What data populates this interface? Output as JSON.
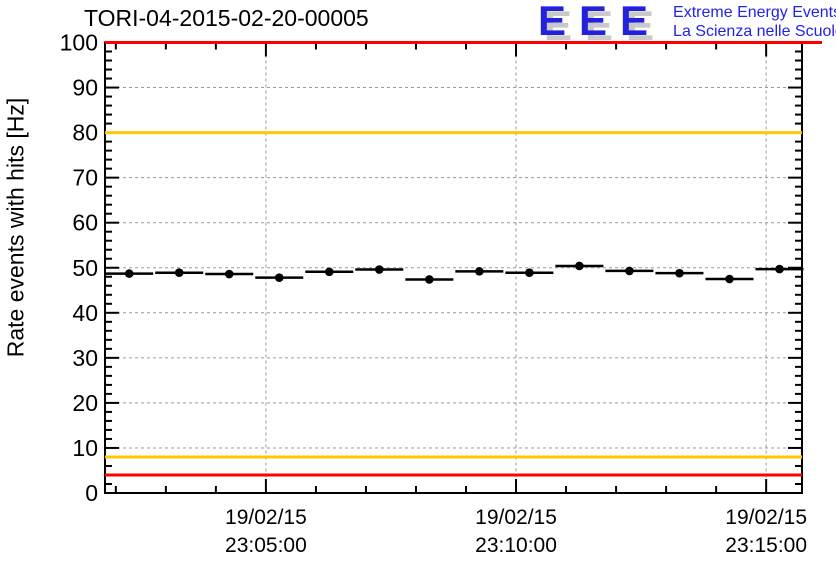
{
  "header": {
    "title": "TORI-04-2015-02-20-00005"
  },
  "logo": {
    "letters": "EEE",
    "line1": "Extreme Energy Events",
    "line2": "La Scienza nelle Scuole",
    "blue": "#2222dd",
    "shadow_gray": "#c9c9c9"
  },
  "chart_data": {
    "type": "line",
    "title": "TORI-04-2015-02-20-00005",
    "xlabel": "",
    "ylabel": "Rate events with hits [Hz]",
    "ylim": [
      0,
      100
    ],
    "y_major_step": 10,
    "y_minor_step": 2,
    "y_tick_labels": [
      "0",
      "10",
      "20",
      "30",
      "40",
      "50",
      "60",
      "70",
      "80",
      "90",
      "100"
    ],
    "grid": "dotted gray at major ticks, both axes",
    "legend_position": "none",
    "x_range_seconds": [
      -193,
      643
    ],
    "x_minor_step_seconds": 60,
    "x_major_ticks": [
      {
        "t": 0,
        "label_date": "19/02/15",
        "label_time": "23:05:00"
      },
      {
        "t": 300,
        "label_date": "19/02/15",
        "label_time": "23:10:00"
      },
      {
        "t": 600,
        "label_date": "19/02/15",
        "label_time": "23:15:00"
      }
    ],
    "thresholds": [
      {
        "value": 100,
        "color": "#ff0000",
        "extend_right": true
      },
      {
        "value": 80,
        "color": "#ffc800",
        "extend_right": false
      },
      {
        "value": 8,
        "color": "#ffc800",
        "extend_right": false
      },
      {
        "value": 4,
        "color": "#ff0000",
        "extend_right": false
      }
    ],
    "series": [
      {
        "name": "rate-events-with-hits",
        "color": "#000000",
        "marker": "filled-circle",
        "bin_halfwidth_seconds": 30,
        "points": [
          {
            "t": -164,
            "v": 48.7
          },
          {
            "t": -104,
            "v": 48.9
          },
          {
            "t": -44,
            "v": 48.6
          },
          {
            "t": 16,
            "v": 47.8
          },
          {
            "t": 76,
            "v": 49.1
          },
          {
            "t": 136,
            "v": 49.6
          },
          {
            "t": 196,
            "v": 47.4
          },
          {
            "t": 256,
            "v": 49.2
          },
          {
            "t": 316,
            "v": 48.9
          },
          {
            "t": 376,
            "v": 50.4
          },
          {
            "t": 436,
            "v": 49.3
          },
          {
            "t": 496,
            "v": 48.8
          },
          {
            "t": 556,
            "v": 47.5
          },
          {
            "t": 616,
            "v": 49.7
          }
        ]
      }
    ]
  }
}
